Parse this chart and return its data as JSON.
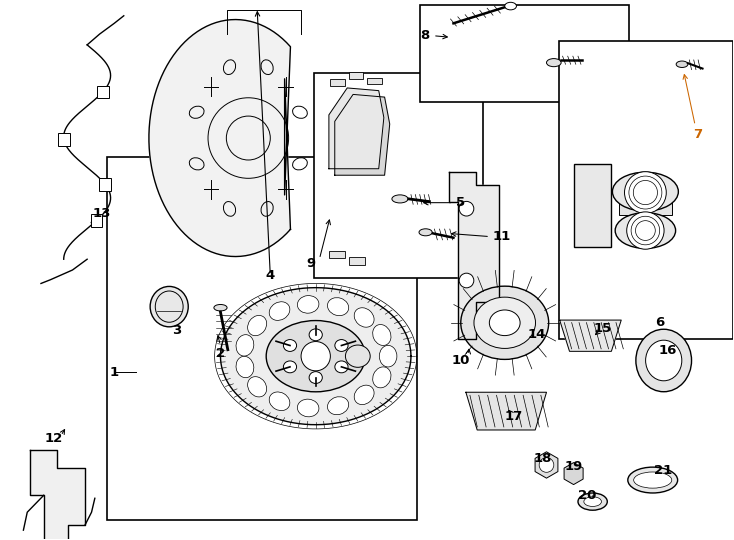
{
  "bg_color": "#ffffff",
  "line_color": "#000000",
  "label_orange": "#cc6600",
  "figsize": [
    7.34,
    5.4
  ],
  "dpi": 100,
  "boxes": {
    "rotor": [
      0.145,
      0.29,
      0.41,
      0.965
    ],
    "pads": [
      0.435,
      0.135,
      0.67,
      0.515
    ],
    "bolts": [
      0.578,
      0.005,
      0.87,
      0.18
    ],
    "caliper": [
      0.762,
      0.078,
      1.0,
      0.63
    ]
  },
  "labels": {
    "1": [
      0.148,
      0.72,
      "left"
    ],
    "2": [
      0.302,
      0.64,
      "center"
    ],
    "3": [
      0.248,
      0.59,
      "center"
    ],
    "4": [
      0.37,
      0.498,
      "center"
    ],
    "5": [
      0.618,
      0.385,
      "left"
    ],
    "6": [
      0.9,
      0.58,
      "center"
    ],
    "7": [
      0.952,
      0.252,
      "center"
    ],
    "8": [
      0.588,
      0.062,
      "left"
    ],
    "9": [
      0.51,
      0.488,
      "left"
    ],
    "10": [
      0.635,
      0.665,
      "center"
    ],
    "11": [
      0.672,
      0.44,
      "left"
    ],
    "12": [
      0.082,
      0.8,
      "center"
    ],
    "13": [
      0.12,
      0.402,
      "left"
    ],
    "14": [
      0.732,
      0.625,
      "center"
    ],
    "15": [
      0.82,
      0.618,
      "center"
    ],
    "16": [
      0.908,
      0.658,
      "center"
    ],
    "17": [
      0.702,
      0.778,
      "center"
    ],
    "18": [
      0.742,
      0.862,
      "center"
    ],
    "19": [
      0.782,
      0.878,
      "center"
    ],
    "20": [
      0.802,
      0.93,
      "center"
    ],
    "21": [
      0.892,
      0.882,
      "left"
    ]
  }
}
